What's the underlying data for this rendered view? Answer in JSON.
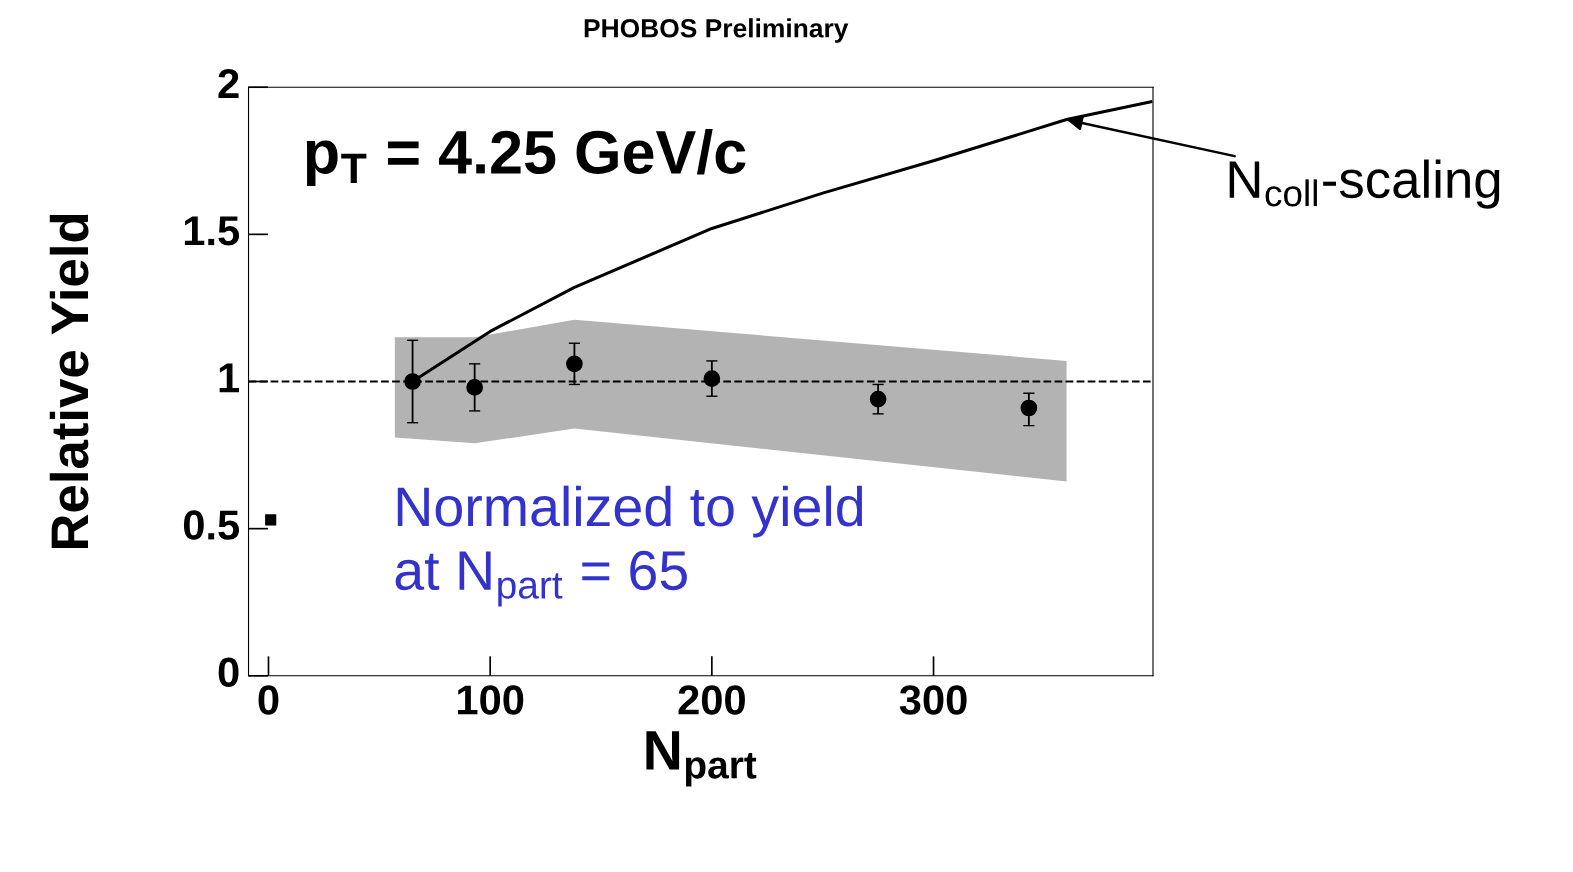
{
  "chart_data": {
    "type": "scatter",
    "title": "PHOBOS Preliminary",
    "xlabel": "N$_{part}$",
    "ylabel": "Relative Yield",
    "xlim": [
      -9,
      399
    ],
    "ylim": [
      0,
      2
    ],
    "xticks": [
      0,
      100,
      200,
      300
    ],
    "yticks": [
      0,
      0.5,
      1,
      1.5,
      2
    ],
    "series": [
      {
        "type": "area",
        "color": "#b3b3b3",
        "x": [
          57,
          93,
          138,
          360
        ],
        "values": [
          null,
          null,
          null,
          null
        ],
        "lower": [
          0.81,
          0.79,
          0.84,
          0.66
        ],
        "upper": [
          1.15,
          1.15,
          1.21,
          1.07
        ]
      },
      {
        "type": "line",
        "color": "#000000",
        "line_style": "solid",
        "marker": "none",
        "x": [
          65,
          100,
          138,
          200,
          250,
          300,
          360,
          398
        ],
        "values": [
          1.0,
          1.17,
          1.32,
          1.52,
          1.64,
          1.75,
          1.89,
          1.95
        ]
      },
      {
        "color": "#000000",
        "marker": "circle",
        "x": [
          65,
          93,
          138,
          200,
          275,
          343
        ],
        "values": [
          1.0,
          0.98,
          1.06,
          1.01,
          0.94,
          0.91
        ],
        "errors": [
          [
            0.86,
            1.14
          ],
          [
            0.9,
            1.06
          ],
          [
            0.99,
            1.13
          ],
          [
            0.95,
            1.07
          ],
          [
            0.89,
            0.99
          ],
          [
            0.85,
            0.96
          ]
        ]
      },
      {
        "color": "#000000",
        "marker": "square",
        "x": [
          1
        ],
        "values": [
          0.53
        ]
      }
    ],
    "ref_lines": [
      {
        "axis": "y",
        "value": 1,
        "color": "#000000",
        "line_style": "dashed"
      }
    ],
    "annotations": [
      "p$_{T}$ = 4.25 GeV/c",
      "Normalized to yield\nat N$_{part}$ = 65",
      {
        "text": "N$_{coll}$-scaling",
        "x": 360,
        "y": 1.89
      }
    ],
    "grid": false,
    "legend": false
  }
}
